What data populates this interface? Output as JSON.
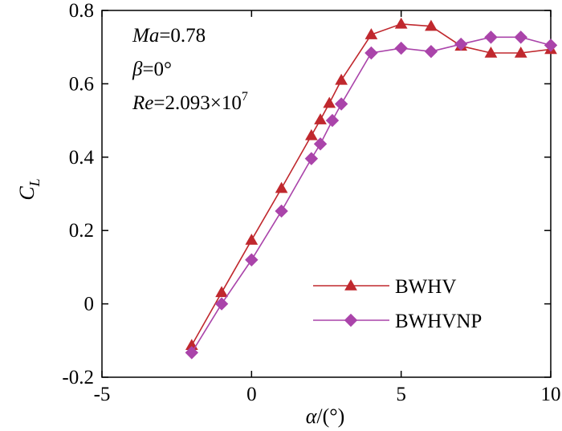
{
  "chart_data": {
    "type": "line",
    "title": "",
    "xlabel": {
      "symbol": "α",
      "unit": "/(°)"
    },
    "ylabel": {
      "main": "C",
      "sub": "L"
    },
    "xlim": [
      -5,
      10
    ],
    "ylim": [
      -0.2,
      0.8
    ],
    "x_ticks": [
      -5,
      0,
      5,
      10
    ],
    "y_ticks": [
      -0.2,
      0,
      0.2,
      0.4,
      0.6,
      0.8
    ],
    "x_tick_labels": [
      "-5",
      "0",
      "5",
      "10"
    ],
    "y_tick_labels": [
      "-0.2",
      "0",
      "0.2",
      "0.4",
      "0.6",
      "0.8"
    ],
    "grid": false,
    "legend_position": "lower-right",
    "annotations": {
      "mach": {
        "symbol": "Ma",
        "value": "=0.78"
      },
      "beta": {
        "symbol": "β",
        "value": "=0°"
      },
      "reynolds": {
        "symbol": "Re",
        "value": "=2.093×10",
        "exponent": "7"
      }
    },
    "series": [
      {
        "name": "BWHV",
        "color": "#c0282e",
        "marker": "triangle",
        "x": [
          -2,
          -1,
          0,
          1,
          2,
          2.3,
          2.6,
          3,
          4,
          5,
          6,
          7,
          8,
          9,
          10
        ],
        "y": [
          -0.113,
          0.031,
          0.174,
          0.315,
          0.459,
          0.502,
          0.547,
          0.61,
          0.734,
          0.763,
          0.757,
          0.703,
          0.684,
          0.684,
          0.694
        ]
      },
      {
        "name": "BWHVNP",
        "color": "#aa44aa",
        "marker": "diamond",
        "x": [
          -2,
          -1,
          0,
          1,
          2,
          2.3,
          2.7,
          3,
          4,
          5,
          6,
          7,
          8,
          9,
          10
        ],
        "y": [
          -0.133,
          0.0,
          0.12,
          0.253,
          0.396,
          0.436,
          0.5,
          0.545,
          0.684,
          0.697,
          0.688,
          0.708,
          0.727,
          0.727,
          0.705
        ]
      }
    ]
  }
}
